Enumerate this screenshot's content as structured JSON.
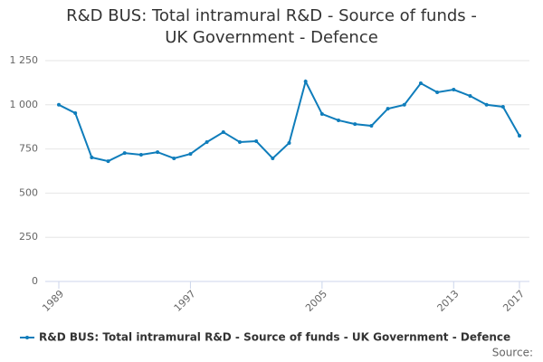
{
  "chart_data": {
    "type": "line",
    "title": "R&D BUS: Total intramural R&D - Source of funds - UK Government - Defence",
    "x": [
      1989,
      1990,
      1991,
      1992,
      1993,
      1994,
      1995,
      1996,
      1997,
      1998,
      1999,
      2000,
      2001,
      2002,
      2003,
      2004,
      2005,
      2006,
      2007,
      2008,
      2009,
      2010,
      2011,
      2012,
      2013,
      2014,
      2015,
      2016,
      2017
    ],
    "series": [
      {
        "name": "R&D BUS: Total intramural R&D - Source of funds - UK Government - Defence",
        "color": "#0f7dbb",
        "values": [
          1000,
          953,
          702,
          681,
          727,
          717,
          732,
          697,
          722,
          789,
          845,
          789,
          794,
          697,
          784,
          1132,
          948,
          912,
          891,
          881,
          978,
          1000,
          1122,
          1071,
          1086,
          1050,
          1000,
          989,
          825
        ]
      }
    ],
    "xlim": [
      1989,
      2017
    ],
    "xticks": [
      1989,
      1997,
      2005,
      2013,
      2017
    ],
    "ylim": [
      0,
      1250
    ],
    "yticks": [
      0,
      250,
      500,
      750,
      {
        "value": 1000,
        "label": "1 000"
      },
      {
        "value": 1250,
        "label": "1 250"
      }
    ],
    "grid": true,
    "legend": "bottom",
    "source": "Source:"
  }
}
